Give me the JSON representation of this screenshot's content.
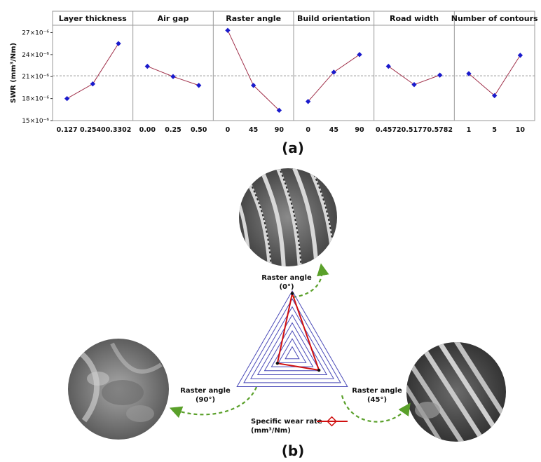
{
  "chart_data": [
    {
      "type": "line",
      "ylabel": "SWR (mm³/Nm)",
      "ylim": [
        15,
        28
      ],
      "y_ticks": [
        {
          "value": 15,
          "label": "15×10⁻⁶"
        },
        {
          "value": 18,
          "label": "18×10⁻⁶"
        },
        {
          "value": 21,
          "label": "21×10⁻⁶"
        },
        {
          "value": 24,
          "label": "24×10⁻⁶"
        },
        {
          "value": 27,
          "label": "27×10⁻⁶"
        }
      ],
      "reference_line": 21.1,
      "series_color": "#a0304a",
      "marker_color": "#1a1acc",
      "panels": [
        {
          "title": "Layer thickness",
          "categories": [
            "0.127",
            "0.2540",
            "0.3302"
          ],
          "values": [
            18.0,
            20.0,
            25.5
          ]
        },
        {
          "title": "Air gap",
          "categories": [
            "0.00",
            "0.25",
            "0.50"
          ],
          "values": [
            22.4,
            21.0,
            19.8
          ]
        },
        {
          "title": "Raster angle",
          "categories": [
            "0",
            "45",
            "90"
          ],
          "values": [
            27.3,
            19.8,
            16.4
          ]
        },
        {
          "title": "Build orientation",
          "categories": [
            "0",
            "45",
            "90"
          ],
          "values": [
            17.6,
            21.6,
            24.0
          ]
        },
        {
          "title": "Road width",
          "categories": [
            "0.4572",
            "0.5177",
            "0.5782"
          ],
          "values": [
            22.4,
            19.9,
            21.2
          ]
        },
        {
          "title": "Number of contours",
          "categories": [
            "1",
            "5",
            "10"
          ],
          "values": [
            21.4,
            18.4,
            23.9
          ]
        }
      ]
    },
    {
      "type": "radar",
      "axes": [
        {
          "label": "Raster angle",
          "sublabel": "(0°)",
          "value": 27.3
        },
        {
          "label": "Raster angle",
          "sublabel": "(45°)",
          "value": 19.8
        },
        {
          "label": "Raster angle",
          "sublabel": "(90°)",
          "value": 16.4
        }
      ],
      "series_name": "Specific wear rate",
      "series_unit": "(mm³/Nm)",
      "series_color": "#d01010",
      "grid_color": "#4a4ab8",
      "rings": 8
    }
  ],
  "figure_labels": {
    "a": "(a)",
    "b": "(b)"
  }
}
